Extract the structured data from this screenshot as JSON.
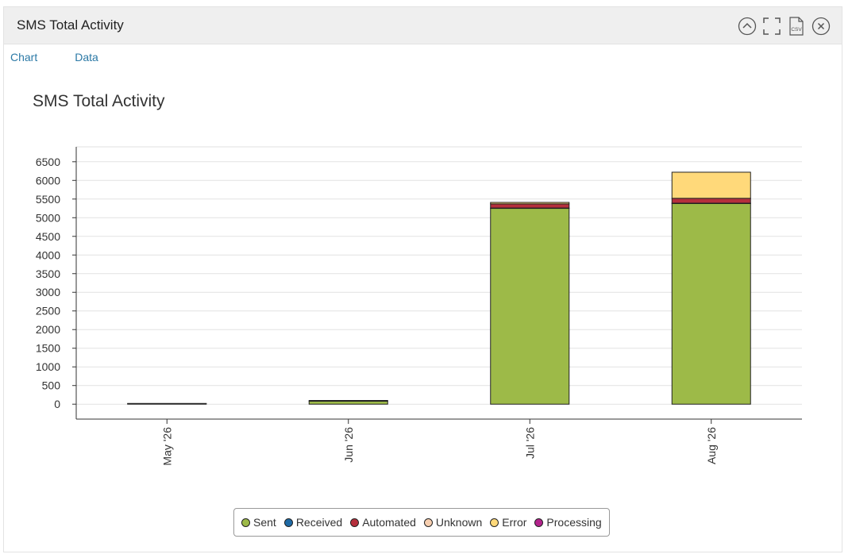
{
  "panel": {
    "title": "SMS Total Activity",
    "icons": [
      "collapse-up-icon",
      "fullscreen-icon",
      "csv-download-icon",
      "close-icon"
    ],
    "csv_icon_text": "CSV"
  },
  "tabs": [
    {
      "label": "Chart"
    },
    {
      "label": "Data"
    }
  ],
  "chart_data": {
    "type": "bar",
    "stacked": true,
    "title": "SMS Total Activity",
    "xlabel": "",
    "ylabel": "",
    "categories": [
      "May '26",
      "Jun '26",
      "Jul '26",
      "Aug '26"
    ],
    "yticks": [
      0,
      500,
      1000,
      1500,
      2000,
      2500,
      3000,
      3500,
      4000,
      4500,
      5000,
      5500,
      6000,
      6500
    ],
    "ylim": [
      -400,
      6900
    ],
    "grid": true,
    "legend_position": "bottom",
    "series": [
      {
        "name": "Sent",
        "color": "#9dba48",
        "values": [
          15,
          80,
          5250,
          5380
        ]
      },
      {
        "name": "Received",
        "color": "#1f6aa5",
        "values": [
          0,
          0,
          10,
          10
        ]
      },
      {
        "name": "Automated",
        "color": "#b52f3c",
        "values": [
          5,
          20,
          110,
          130
        ]
      },
      {
        "name": "Unknown",
        "color": "#f7cfb0",
        "values": [
          0,
          0,
          0,
          0
        ]
      },
      {
        "name": "Error",
        "color": "#ffd97a",
        "values": [
          0,
          0,
          40,
          700
        ]
      },
      {
        "name": "Processing",
        "color": "#b3238c",
        "values": [
          0,
          0,
          0,
          0
        ]
      }
    ]
  }
}
